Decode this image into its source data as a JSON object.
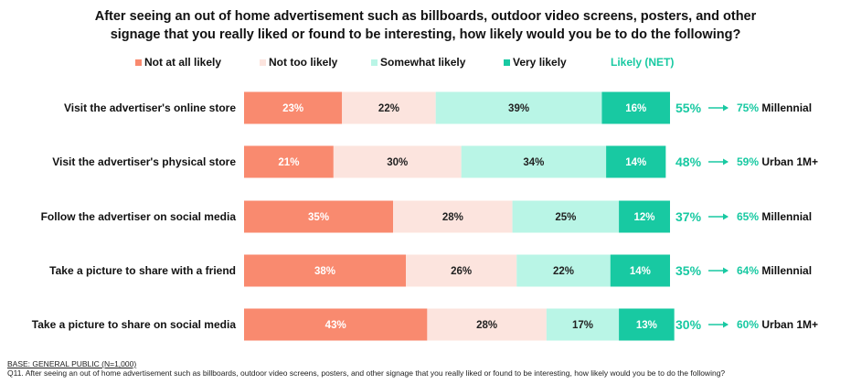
{
  "title_lines": [
    "After seeing an out of home advertisement such as billboards, outdoor video screens, posters, and other",
    "signage that you really liked or found to be interesting, how likely would you be to do the following?"
  ],
  "legend": {
    "items": [
      {
        "label": "Not at all likely",
        "color": "#F98A6F"
      },
      {
        "label": "Not too likely",
        "color": "#FCE4DE"
      },
      {
        "label": "Somewhat likely",
        "color": "#B9F5E6"
      },
      {
        "label": "Very likely",
        "color": "#18C9A2"
      }
    ],
    "net_label": "Likely (NET)",
    "net_color": "#18C9A2"
  },
  "chart_data": {
    "type": "bar",
    "orientation": "horizontal-stacked-100",
    "categories": [
      "Visit the advertiser's online store",
      "Visit the advertiser's physical store",
      "Follow the advertiser on social media",
      "Take a picture to share with a friend",
      "Take a picture to share on social media"
    ],
    "series": [
      {
        "name": "Not at all likely",
        "color": "#F98A6F",
        "values": [
          23,
          21,
          35,
          38,
          43
        ],
        "labels": [
          "23%",
          "21%",
          "35%",
          "38%",
          "43%"
        ]
      },
      {
        "name": "Not too likely",
        "color": "#FCE4DE",
        "values": [
          22,
          30,
          28,
          26,
          28
        ],
        "labels": [
          "22%",
          "30%",
          "28%",
          "26%",
          "28%"
        ]
      },
      {
        "name": "Somewhat likely",
        "color": "#B9F5E6",
        "values": [
          39,
          34,
          25,
          22,
          17
        ],
        "labels": [
          "39%",
          "34%",
          "25%",
          "22%",
          "17%"
        ]
      },
      {
        "name": "Very likely",
        "color": "#18C9A2",
        "values": [
          16,
          14,
          12,
          14,
          13
        ],
        "labels": [
          "16%",
          "14%",
          "12%",
          "14%",
          "13%"
        ]
      }
    ],
    "net": {
      "name": "Likely (NET)",
      "values": [
        55,
        48,
        37,
        35,
        30
      ],
      "labels": [
        "55%",
        "48%",
        "37%",
        "35%",
        "30%"
      ]
    },
    "callouts": [
      "75% Millennial",
      "59% Urban 1M+",
      "65% Millennial",
      "64% Millennial",
      "60% Urban 1M+"
    ]
  },
  "footer": {
    "base": "BASE: GENERAL PUBLIC (N=1,000)",
    "question": "Q11. After seeing an out of home advertisement such as billboards, outdoor video screens, posters, and other signage that you really liked or found to be interesting, how likely would you be to do the following?"
  }
}
